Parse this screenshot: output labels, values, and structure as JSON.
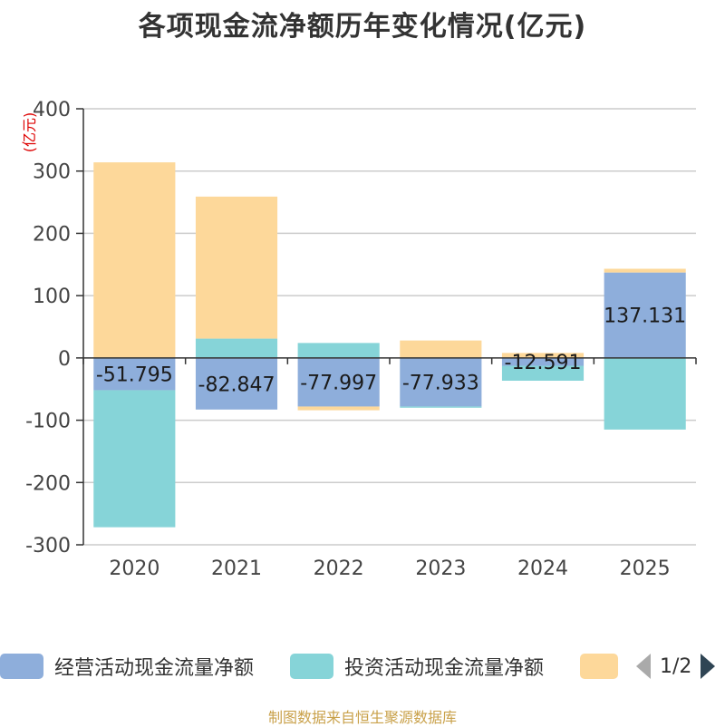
{
  "chart_data": {
    "type": "bar",
    "stacked": true,
    "title": "各项现金流净额历年变化情况(亿元)",
    "ylabel": "(亿元)",
    "xlabel": "",
    "categories": [
      "2020",
      "2021",
      "2022",
      "2023",
      "2024",
      "2025"
    ],
    "ylim": [
      -300,
      400
    ],
    "yticks": [
      400,
      300,
      200,
      100,
      0,
      -100,
      -200,
      -300
    ],
    "grid": true,
    "legend_position": "bottom",
    "series": [
      {
        "name": "经营活动现金流量净额",
        "color": "#8eaedb",
        "values": [
          -51.795,
          -82.847,
          -77.997,
          -77.933,
          -12.591,
          137.131
        ]
      },
      {
        "name": "投资活动现金流量净额",
        "color": "#86d4d8",
        "values": [
          -220,
          31,
          24,
          -2,
          -24,
          -115
        ]
      },
      {
        "name": "",
        "color": "#fdd89a",
        "values": [
          314,
          228,
          -6,
          28,
          8,
          6
        ]
      }
    ],
    "data_labels": [
      "-51.795",
      "-82.847",
      "-77.997",
      "-77.933",
      "-12.591",
      "137.131"
    ]
  },
  "legend": {
    "items": [
      "经营活动现金流量净额",
      "投资活动现金流量净额",
      ""
    ],
    "page": "1/2"
  },
  "source": "制图数据来自恒生聚源数据库"
}
